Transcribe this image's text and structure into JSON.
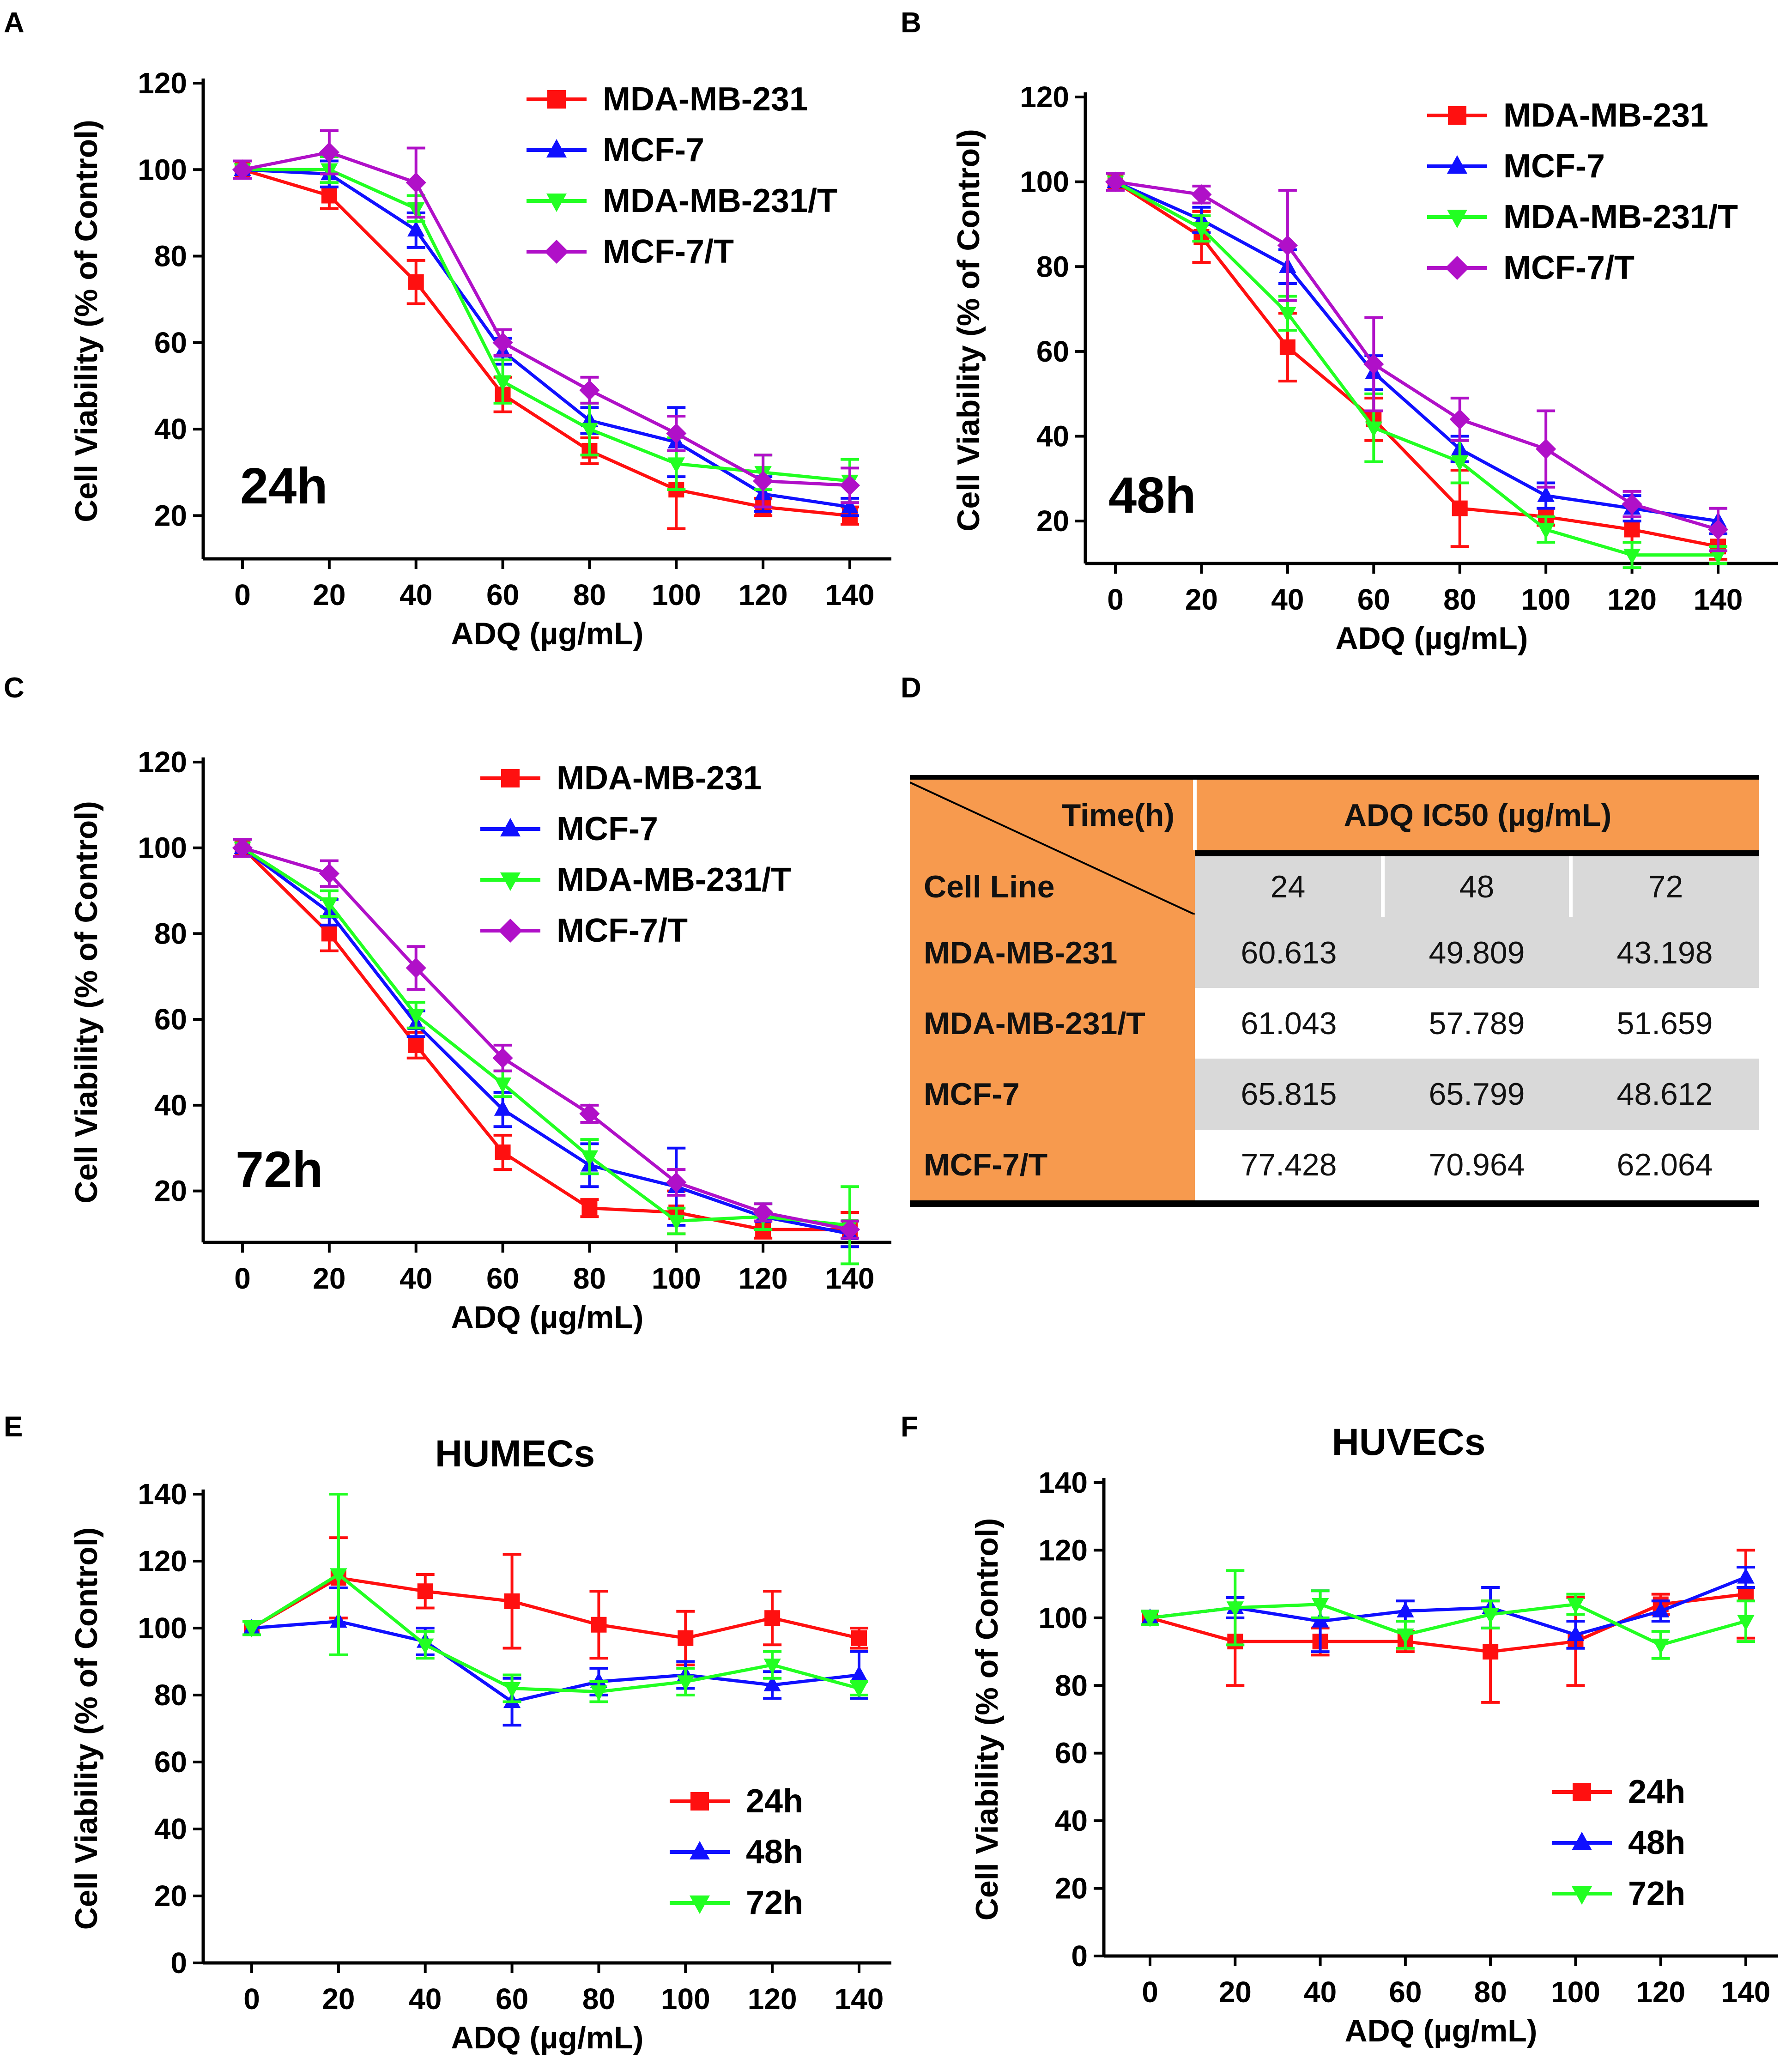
{
  "figure": {
    "panels": [
      "A",
      "B",
      "C",
      "D",
      "E",
      "F"
    ]
  },
  "colors": {
    "red": "#ff1010",
    "blue": "#1010ff",
    "green": "#22ff22",
    "purple": "#b010c8",
    "orange": "#f79a4e",
    "grey": "#d9d9d9"
  },
  "chart_data": [
    {
      "panel": "A",
      "type": "line",
      "title": "",
      "annotation": "24h",
      "xlabel": "ADQ (µg/mL)",
      "ylabel": "Cell Viability (% of Control)",
      "x": [
        0,
        20,
        40,
        60,
        80,
        100,
        120,
        140
      ],
      "xticks": [
        "0",
        "20",
        "40",
        "60",
        "80",
        "100",
        "120",
        "140"
      ],
      "ylim": [
        10,
        120
      ],
      "yticks": [
        20,
        40,
        60,
        80,
        100,
        120
      ],
      "legend": "top-right",
      "series": [
        {
          "name": "MDA-MB-231",
          "marker": "square",
          "values": [
            100,
            94,
            74,
            48,
            35,
            26,
            22,
            20
          ],
          "errors": [
            2,
            3,
            5,
            4,
            3,
            9,
            2,
            2
          ]
        },
        {
          "name": "MCF-7",
          "marker": "triangle-up",
          "values": [
            100,
            99,
            86,
            58,
            42,
            37,
            25,
            22
          ],
          "errors": [
            2,
            3,
            4,
            3,
            3,
            8,
            4,
            2
          ]
        },
        {
          "name": "MDA-MB-231/T",
          "marker": "triangle-down",
          "values": [
            100,
            100,
            91,
            51,
            40,
            32,
            30,
            28
          ],
          "errors": [
            2,
            3,
            3,
            5,
            6,
            6,
            4,
            5
          ]
        },
        {
          "name": "MCF-7/T",
          "marker": "diamond",
          "values": [
            100,
            104,
            97,
            60,
            49,
            39,
            28,
            27
          ],
          "errors": [
            2,
            5,
            8,
            3,
            3,
            4,
            6,
            4
          ]
        }
      ]
    },
    {
      "panel": "B",
      "type": "line",
      "title": "",
      "annotation": "48h",
      "xlabel": "ADQ (µg/mL)",
      "ylabel": "Cell Viability (% of Control)",
      "x": [
        0,
        20,
        40,
        60,
        80,
        100,
        120,
        140
      ],
      "xticks": [
        "0",
        "20",
        "40",
        "60",
        "80",
        "100",
        "120",
        "140"
      ],
      "ylim": [
        10,
        120
      ],
      "yticks": [
        20,
        40,
        60,
        80,
        100,
        120
      ],
      "legend": "top-right",
      "series": [
        {
          "name": "MDA-MB-231",
          "marker": "square",
          "values": [
            100,
            87,
            61,
            44,
            23,
            21,
            18,
            14
          ],
          "errors": [
            2,
            6,
            8,
            5,
            9,
            2,
            3,
            3
          ]
        },
        {
          "name": "MCF-7",
          "marker": "triangle-up",
          "values": [
            100,
            91,
            80,
            55,
            37,
            26,
            23,
            20
          ],
          "errors": [
            2,
            3,
            4,
            4,
            3,
            3,
            3,
            3
          ]
        },
        {
          "name": "MDA-MB-231/T",
          "marker": "triangle-down",
          "values": [
            100,
            89,
            69,
            42,
            34,
            18,
            12,
            12
          ],
          "errors": [
            2,
            3,
            4,
            8,
            5,
            3,
            3,
            2
          ]
        },
        {
          "name": "MCF-7/T",
          "marker": "diamond",
          "values": [
            100,
            97,
            85,
            57,
            44,
            37,
            24,
            18
          ],
          "errors": [
            2,
            2,
            13,
            11,
            5,
            9,
            3,
            5
          ]
        }
      ]
    },
    {
      "panel": "C",
      "type": "line",
      "title": "",
      "annotation": "72h",
      "xlabel": "ADQ (µg/mL)",
      "ylabel": "Cell Viability (% of Control)",
      "x": [
        0,
        20,
        40,
        60,
        80,
        100,
        120,
        140
      ],
      "xticks": [
        "0",
        "20",
        "40",
        "60",
        "80",
        "100",
        "120",
        "140"
      ],
      "ylim": [
        8,
        120
      ],
      "yticks": [
        20,
        40,
        60,
        80,
        100,
        120
      ],
      "legend": "top-right",
      "series": [
        {
          "name": "MDA-MB-231",
          "marker": "square",
          "values": [
            100,
            80,
            54,
            29,
            16,
            15,
            11,
            11
          ],
          "errors": [
            2,
            4,
            3,
            4,
            2,
            5,
            2,
            4
          ]
        },
        {
          "name": "MCF-7",
          "marker": "triangle-up",
          "values": [
            100,
            85,
            59,
            39,
            26,
            21,
            14,
            10
          ],
          "errors": [
            2,
            3,
            3,
            4,
            5,
            9,
            3,
            3
          ]
        },
        {
          "name": "MDA-MB-231/T",
          "marker": "triangle-down",
          "values": [
            100,
            87,
            61,
            45,
            28,
            13,
            14,
            12
          ],
          "errors": [
            2,
            3,
            3,
            3,
            4,
            3,
            3,
            9
          ]
        },
        {
          "name": "MCF-7/T",
          "marker": "diamond",
          "values": [
            100,
            94,
            72,
            51,
            38,
            22,
            15,
            11
          ],
          "errors": [
            2,
            3,
            5,
            3,
            2,
            3,
            2,
            2
          ]
        }
      ]
    },
    {
      "panel": "E",
      "type": "line",
      "title": "HUMECs",
      "annotation": "",
      "xlabel": "ADQ (µg/mL)",
      "ylabel": "Cell Viability (% of Control)",
      "x": [
        0,
        20,
        40,
        60,
        80,
        100,
        120,
        140
      ],
      "xticks": [
        "0",
        "20",
        "40",
        "60",
        "80",
        "100",
        "120",
        "140"
      ],
      "ylim": [
        0,
        140
      ],
      "yticks": [
        0,
        20,
        40,
        60,
        80,
        100,
        120,
        140
      ],
      "legend": "bottom-right",
      "series": [
        {
          "name": "24h",
          "marker": "square",
          "values": [
            100,
            115,
            111,
            108,
            101,
            97,
            103,
            97
          ],
          "errors": [
            2,
            12,
            5,
            14,
            10,
            8,
            8,
            3
          ]
        },
        {
          "name": "48h",
          "marker": "triangle-up",
          "values": [
            100,
            102,
            96,
            78,
            84,
            86,
            83,
            86
          ],
          "errors": [
            2,
            10,
            4,
            7,
            4,
            4,
            4,
            7
          ]
        },
        {
          "name": "72h",
          "marker": "triangle-down",
          "values": [
            100,
            116,
            95,
            82,
            81,
            84,
            89,
            82
          ],
          "errors": [
            2,
            24,
            4,
            4,
            3,
            4,
            4,
            2
          ]
        }
      ]
    },
    {
      "panel": "F",
      "type": "line",
      "title": "HUVECs",
      "annotation": "",
      "xlabel": "ADQ (µg/mL)",
      "ylabel": "Cell Viability (% of Control)",
      "x": [
        0,
        20,
        40,
        60,
        80,
        100,
        120,
        140
      ],
      "xticks": [
        "0",
        "20",
        "40",
        "60",
        "80",
        "100",
        "120",
        "140"
      ],
      "ylim": [
        0,
        140
      ],
      "yticks": [
        0,
        20,
        40,
        60,
        80,
        100,
        120,
        140
      ],
      "legend": "bottom-right",
      "series": [
        {
          "name": "24h",
          "marker": "square",
          "values": [
            100,
            93,
            93,
            93,
            90,
            93,
            104,
            107
          ],
          "errors": [
            2,
            13,
            4,
            3,
            15,
            13,
            3,
            13
          ]
        },
        {
          "name": "48h",
          "marker": "triangle-up",
          "values": [
            100,
            103,
            99,
            102,
            103,
            95,
            102,
            112
          ],
          "errors": [
            2,
            3,
            9,
            3,
            6,
            4,
            3,
            3
          ]
        },
        {
          "name": "72h",
          "marker": "triangle-down",
          "values": [
            100,
            103,
            104,
            95,
            101,
            104,
            92,
            99
          ],
          "errors": [
            2,
            11,
            4,
            4,
            4,
            3,
            4,
            6
          ]
        }
      ]
    }
  ],
  "table": {
    "panel": "D",
    "corner_top": "Time(h)",
    "corner_bottom": "Cell Line",
    "header": "ADQ IC50 (µg/mL)",
    "columns": [
      "24",
      "48",
      "72"
    ],
    "rows": [
      {
        "label": "MDA-MB-231",
        "values": [
          "60.613",
          "49.809",
          "43.198"
        ]
      },
      {
        "label": "MDA-MB-231/T",
        "values": [
          "61.043",
          "57.789",
          "51.659"
        ]
      },
      {
        "label": "MCF-7",
        "values": [
          "65.815",
          "65.799",
          "48.612"
        ]
      },
      {
        "label": "MCF-7/T",
        "values": [
          "77.428",
          "70.964",
          "62.064"
        ]
      }
    ]
  }
}
